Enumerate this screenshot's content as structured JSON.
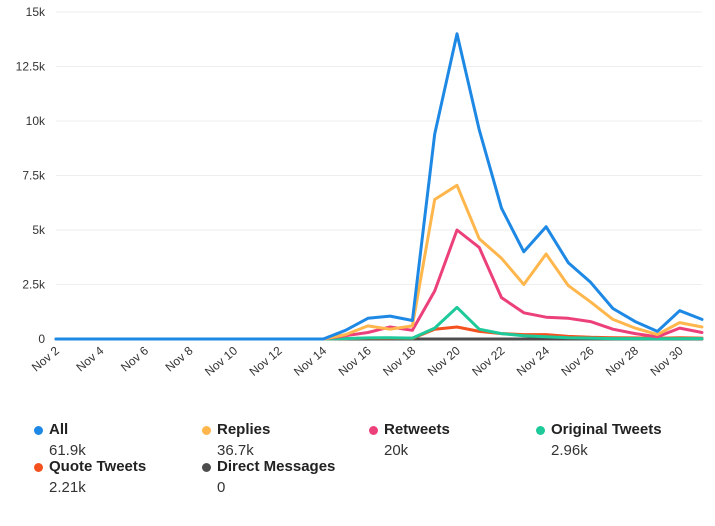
{
  "chart_data": {
    "type": "line",
    "title": "",
    "xlabel": "",
    "ylabel": "",
    "ylim": [
      0,
      15000
    ],
    "yticks": [
      0,
      2500,
      5000,
      7500,
      10000,
      12500,
      15000
    ],
    "ytick_labels": [
      "0",
      "2.5k",
      "5k",
      "7.5k",
      "10k",
      "12.5k",
      "15k"
    ],
    "x": [
      "Nov 2",
      "Nov 3",
      "Nov 4",
      "Nov 5",
      "Nov 6",
      "Nov 7",
      "Nov 8",
      "Nov 9",
      "Nov 10",
      "Nov 11",
      "Nov 12",
      "Nov 13",
      "Nov 14",
      "Nov 15",
      "Nov 16",
      "Nov 17",
      "Nov 18",
      "Nov 19",
      "Nov 20",
      "Nov 21",
      "Nov 22",
      "Nov 23",
      "Nov 24",
      "Nov 25",
      "Nov 26",
      "Nov 27",
      "Nov 28",
      "Nov 29",
      "Nov 30",
      "Dec 1"
    ],
    "xtick_labels": [
      "Nov 2",
      "Nov 4",
      "Nov 6",
      "Nov 8",
      "Nov 10",
      "Nov 12",
      "Nov 14",
      "Nov 16",
      "Nov 18",
      "Nov 20",
      "Nov 22",
      "Nov 24",
      "Nov 26",
      "Nov 28",
      "Nov 30"
    ],
    "grid": true,
    "legend_position": "bottom",
    "series": [
      {
        "name": "All",
        "total": "61.9k",
        "color": "#1e88e5",
        "values": [
          0,
          0,
          0,
          0,
          0,
          0,
          0,
          0,
          0,
          0,
          0,
          0,
          0,
          400,
          950,
          1050,
          850,
          9400,
          14000,
          9600,
          6000,
          4000,
          5150,
          3500,
          2600,
          1400,
          800,
          350,
          1300,
          900
        ]
      },
      {
        "name": "Replies",
        "total": "36.7k",
        "color": "#ffb74d",
        "values": [
          0,
          0,
          0,
          0,
          0,
          0,
          0,
          0,
          0,
          0,
          0,
          0,
          0,
          200,
          600,
          450,
          600,
          6400,
          7050,
          4600,
          3700,
          2500,
          3900,
          2450,
          1700,
          900,
          500,
          200,
          750,
          550
        ]
      },
      {
        "name": "Retweets",
        "total": "20k",
        "color": "#ec407a",
        "values": [
          0,
          0,
          0,
          0,
          0,
          0,
          0,
          0,
          0,
          0,
          0,
          0,
          0,
          150,
          300,
          550,
          400,
          2200,
          5000,
          4200,
          1900,
          1200,
          1000,
          950,
          800,
          450,
          250,
          100,
          500,
          300
        ]
      },
      {
        "name": "Original Tweets",
        "total": "2.96k",
        "color": "#1ec99a",
        "values": [
          0,
          0,
          0,
          0,
          0,
          0,
          0,
          0,
          0,
          0,
          0,
          0,
          0,
          20,
          50,
          60,
          40,
          500,
          1450,
          450,
          250,
          150,
          100,
          60,
          40,
          20,
          20,
          10,
          20,
          20
        ]
      },
      {
        "name": "Quote Tweets",
        "total": "2.21k",
        "color": "#f4511e",
        "values": [
          0,
          0,
          0,
          0,
          0,
          0,
          0,
          0,
          0,
          0,
          0,
          0,
          0,
          20,
          40,
          40,
          30,
          450,
          550,
          350,
          250,
          200,
          200,
          120,
          80,
          60,
          50,
          30,
          60,
          40
        ]
      },
      {
        "name": "Direct Messages",
        "total": "0",
        "color": "#4d4d4d",
        "values": [
          0,
          0,
          0,
          0,
          0,
          0,
          0,
          0,
          0,
          0,
          0,
          0,
          0,
          0,
          0,
          0,
          0,
          0,
          0,
          0,
          0,
          0,
          0,
          0,
          0,
          0,
          0,
          0,
          0,
          0
        ]
      }
    ]
  }
}
